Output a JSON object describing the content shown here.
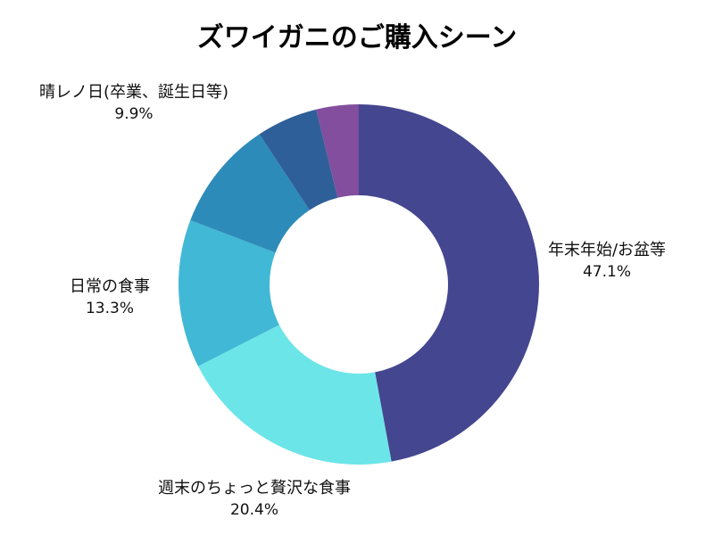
{
  "chart_data": {
    "type": "pie",
    "variant": "donut",
    "title": "ズワイガニのご購入シーン",
    "legend": "none",
    "slices": [
      {
        "label": "年末年始/お盆等",
        "value": 47.1,
        "value_label": "47.1%",
        "color": "#44468F"
      },
      {
        "label": "週末のちょっと贅沢な食事",
        "value": 20.4,
        "value_label": "20.4%",
        "color": "#6CE5E8"
      },
      {
        "label": "日常の食事",
        "value": 13.3,
        "value_label": "13.3%",
        "color": "#41B8D5"
      },
      {
        "label": "晴レノ日(卒業、誕生日等)",
        "value": 9.9,
        "value_label": "9.9%",
        "color": "#2D8BBA"
      },
      {
        "label": "",
        "value": 5.5,
        "value_label": "",
        "color": "#2F5F98"
      },
      {
        "label": "",
        "value": 3.8,
        "value_label": "",
        "color": "#824E9D"
      }
    ]
  }
}
